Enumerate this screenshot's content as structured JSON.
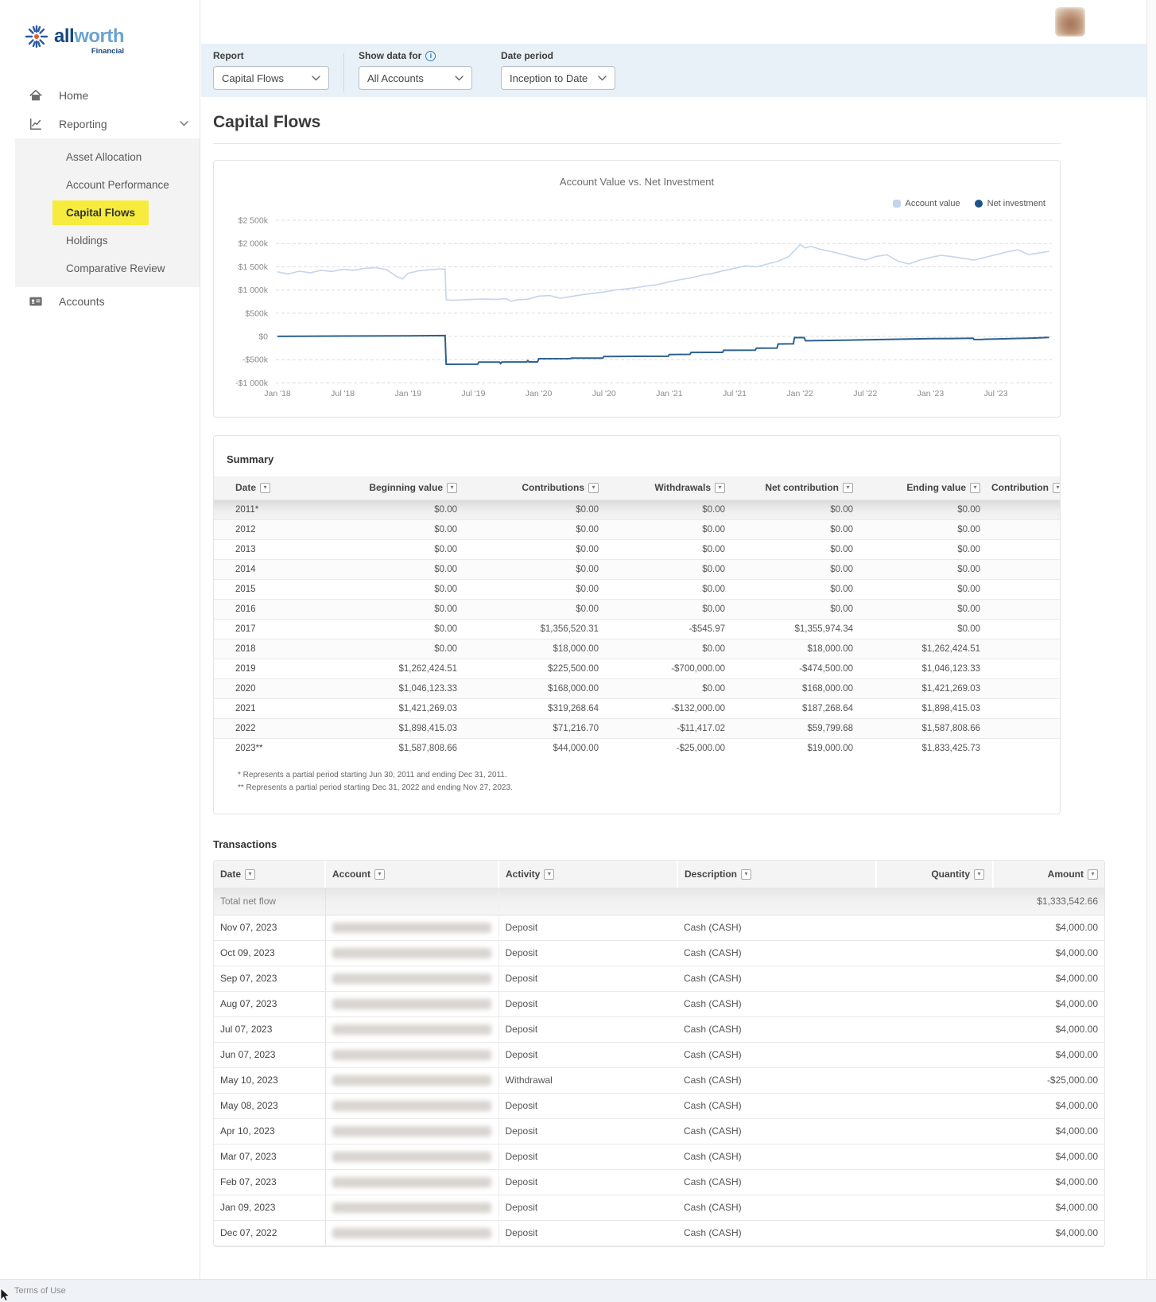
{
  "sidebar": {
    "logo": {
      "brand_bold": "all",
      "brand_light": "worth",
      "brand_sub": "Financial"
    },
    "home_label": "Home",
    "reporting_label": "Reporting",
    "reporting_sub": [
      "Asset Allocation",
      "Account Performance",
      "Capital Flows",
      "Holdings",
      "Comparative Review"
    ],
    "active_sub": "Capital Flows",
    "accounts_label": "Accounts"
  },
  "filters": {
    "report_label": "Report",
    "report_value": "Capital Flows",
    "show_label": "Show data for",
    "show_value": "All Accounts",
    "period_label": "Date period",
    "period_value": "Inception to Date"
  },
  "page": {
    "title": "Capital Flows"
  },
  "chart_data": {
    "type": "line",
    "title": "Account Value vs. Net Investment",
    "legend_position": "top-right",
    "grid": "horizontal-dashed",
    "x_unit": "months since Jan 2018",
    "x_tick_months": [
      0,
      6,
      12,
      18,
      24,
      30,
      36,
      42,
      48,
      54,
      60,
      66
    ],
    "x_tick_labels": [
      "Jan '18",
      "Jul '18",
      "Jan '19",
      "Jul '19",
      "Jan '20",
      "Jul '20",
      "Jan '21",
      "Jul '21",
      "Jan '22",
      "Jul '22",
      "Jan '23",
      "Jul '23"
    ],
    "x_range": [
      0,
      71
    ],
    "y_unit": "USD thousands",
    "y_ticks": [
      2500,
      2000,
      1500,
      1000,
      500,
      0,
      -500,
      -1000
    ],
    "y_tick_labels": [
      "$2 500k",
      "$2 000k",
      "$1 500k",
      "$1 000k",
      "$500k",
      "$0",
      "-$500k",
      "-$1 000k"
    ],
    "series": [
      {
        "name": "Account value",
        "color": "#c3d5ec",
        "width": 1.6,
        "points": [
          [
            0,
            1390
          ],
          [
            1,
            1345
          ],
          [
            2,
            1405
          ],
          [
            3,
            1370
          ],
          [
            4,
            1425
          ],
          [
            5,
            1398
          ],
          [
            6,
            1445
          ],
          [
            7,
            1425
          ],
          [
            8,
            1465
          ],
          [
            9,
            1482
          ],
          [
            10,
            1440
          ],
          [
            11,
            1285
          ],
          [
            11.5,
            1238
          ],
          [
            12,
            1360
          ],
          [
            13,
            1415
          ],
          [
            14,
            1438
          ],
          [
            15,
            1452
          ],
          [
            15.4,
            1448
          ],
          [
            15.5,
            790
          ],
          [
            16,
            778
          ],
          [
            17,
            788
          ],
          [
            18,
            798
          ],
          [
            19,
            806
          ],
          [
            20,
            798
          ],
          [
            21,
            812
          ],
          [
            21.5,
            756
          ],
          [
            22,
            788
          ],
          [
            23,
            802
          ],
          [
            24,
            868
          ],
          [
            25,
            880
          ],
          [
            26,
            822
          ],
          [
            27,
            862
          ],
          [
            28,
            898
          ],
          [
            29,
            928
          ],
          [
            30,
            958
          ],
          [
            31,
            998
          ],
          [
            32,
            1022
          ],
          [
            33,
            1052
          ],
          [
            34,
            1088
          ],
          [
            35,
            1118
          ],
          [
            36,
            1178
          ],
          [
            37,
            1222
          ],
          [
            38,
            1262
          ],
          [
            39,
            1318
          ],
          [
            40,
            1358
          ],
          [
            41,
            1418
          ],
          [
            42,
            1468
          ],
          [
            43,
            1518
          ],
          [
            44,
            1498
          ],
          [
            45,
            1558
          ],
          [
            46,
            1618
          ],
          [
            47,
            1724
          ],
          [
            48,
            1975
          ],
          [
            48.5,
            1905
          ],
          [
            49,
            1940
          ],
          [
            50,
            1868
          ],
          [
            51,
            1820
          ],
          [
            52,
            1762
          ],
          [
            53,
            1700
          ],
          [
            54,
            1645
          ],
          [
            55,
            1722
          ],
          [
            56,
            1758
          ],
          [
            57,
            1622
          ],
          [
            58,
            1560
          ],
          [
            59,
            1642
          ],
          [
            60,
            1700
          ],
          [
            61,
            1748
          ],
          [
            62,
            1718
          ],
          [
            63,
            1682
          ],
          [
            64,
            1642
          ],
          [
            65,
            1702
          ],
          [
            66,
            1758
          ],
          [
            67,
            1818
          ],
          [
            68,
            1868
          ],
          [
            69,
            1762
          ],
          [
            70,
            1800
          ],
          [
            70.9,
            1833
          ]
        ]
      },
      {
        "name": "Net investment",
        "color": "#2d6191",
        "width": 2,
        "points": [
          [
            0,
            2
          ],
          [
            6,
            8
          ],
          [
            12,
            14
          ],
          [
            15.4,
            18
          ],
          [
            15.5,
            -600
          ],
          [
            18.4,
            -598
          ],
          [
            18.5,
            -552
          ],
          [
            20.4,
            -552
          ],
          [
            20.5,
            -584
          ],
          [
            20.6,
            -552
          ],
          [
            22.9,
            -550
          ],
          [
            23,
            -520
          ],
          [
            23.1,
            -548
          ],
          [
            23.9,
            -548
          ],
          [
            24,
            -480
          ],
          [
            26.9,
            -478
          ],
          [
            27,
            -468
          ],
          [
            29.9,
            -466
          ],
          [
            30,
            -432
          ],
          [
            33,
            -428
          ],
          [
            35.9,
            -426
          ],
          [
            36,
            -388
          ],
          [
            37.9,
            -386
          ],
          [
            38,
            -345
          ],
          [
            40.9,
            -342
          ],
          [
            41,
            -298
          ],
          [
            43.9,
            -296
          ],
          [
            44,
            -252
          ],
          [
            45.9,
            -250
          ],
          [
            46,
            -162
          ],
          [
            47.4,
            -160
          ],
          [
            47.5,
            -25
          ],
          [
            48.4,
            -25
          ],
          [
            48.5,
            -92
          ],
          [
            50,
            -88
          ],
          [
            52,
            -80
          ],
          [
            54,
            -72
          ],
          [
            56,
            -64
          ],
          [
            58,
            -56
          ],
          [
            60,
            -48
          ],
          [
            62,
            -44
          ],
          [
            63.9,
            -40
          ],
          [
            64,
            -66
          ],
          [
            64.8,
            -64
          ],
          [
            65,
            -60
          ],
          [
            66,
            -54
          ],
          [
            67,
            -49
          ],
          [
            68,
            -43
          ],
          [
            69,
            -37
          ],
          [
            70,
            -30
          ],
          [
            70.9,
            -22
          ]
        ]
      }
    ]
  },
  "summary": {
    "heading": "Summary",
    "columns": [
      "Date",
      "Beginning value",
      "Contributions",
      "Withdrawals",
      "Net contribution",
      "Ending value",
      "Contribution"
    ],
    "rows": [
      [
        "2011*",
        "$0.00",
        "$0.00",
        "$0.00",
        "$0.00",
        "$0.00",
        ""
      ],
      [
        "2012",
        "$0.00",
        "$0.00",
        "$0.00",
        "$0.00",
        "$0.00",
        ""
      ],
      [
        "2013",
        "$0.00",
        "$0.00",
        "$0.00",
        "$0.00",
        "$0.00",
        ""
      ],
      [
        "2014",
        "$0.00",
        "$0.00",
        "$0.00",
        "$0.00",
        "$0.00",
        ""
      ],
      [
        "2015",
        "$0.00",
        "$0.00",
        "$0.00",
        "$0.00",
        "$0.00",
        ""
      ],
      [
        "2016",
        "$0.00",
        "$0.00",
        "$0.00",
        "$0.00",
        "$0.00",
        ""
      ],
      [
        "2017",
        "$0.00",
        "$1,356,520.31",
        "-$545.97",
        "$1,355,974.34",
        "$0.00",
        ""
      ],
      [
        "2018",
        "$0.00",
        "$18,000.00",
        "$0.00",
        "$18,000.00",
        "$1,262,424.51",
        ""
      ],
      [
        "2019",
        "$1,262,424.51",
        "$225,500.00",
        "-$700,000.00",
        "-$474,500.00",
        "$1,046,123.33",
        ""
      ],
      [
        "2020",
        "$1,046,123.33",
        "$168,000.00",
        "$0.00",
        "$168,000.00",
        "$1,421,269.03",
        ""
      ],
      [
        "2021",
        "$1,421,269.03",
        "$319,268.64",
        "-$132,000.00",
        "$187,268.64",
        "$1,898,415.03",
        ""
      ],
      [
        "2022",
        "$1,898,415.03",
        "$71,216.70",
        "-$11,417.02",
        "$59,799.68",
        "$1,587,808.66",
        ""
      ],
      [
        "2023**",
        "$1,587,808.66",
        "$44,000.00",
        "-$25,000.00",
        "$19,000.00",
        "$1,833,425.73",
        ""
      ]
    ],
    "footnotes": [
      "* Represents a partial period starting Jun 30, 2011 and ending Dec 31, 2011.",
      "** Represents a partial period starting Dec 31, 2022 and ending Nov 27, 2023."
    ]
  },
  "transactions": {
    "heading": "Transactions",
    "columns": [
      "Date",
      "Account",
      "Activity",
      "Description",
      "Quantity",
      "Amount"
    ],
    "total_label": "Total net flow",
    "total_amount": "$1,333,542.66",
    "rows": [
      {
        "date": "Nov 07, 2023",
        "account_redacted": true,
        "activity": "Deposit",
        "description": "Cash (CASH)",
        "quantity": "",
        "amount": "$4,000.00"
      },
      {
        "date": "Oct 09, 2023",
        "account_redacted": true,
        "activity": "Deposit",
        "description": "Cash (CASH)",
        "quantity": "",
        "amount": "$4,000.00"
      },
      {
        "date": "Sep 07, 2023",
        "account_redacted": true,
        "activity": "Deposit",
        "description": "Cash (CASH)",
        "quantity": "",
        "amount": "$4,000.00"
      },
      {
        "date": "Aug 07, 2023",
        "account_redacted": true,
        "activity": "Deposit",
        "description": "Cash (CASH)",
        "quantity": "",
        "amount": "$4,000.00"
      },
      {
        "date": "Jul 07, 2023",
        "account_redacted": true,
        "activity": "Deposit",
        "description": "Cash (CASH)",
        "quantity": "",
        "amount": "$4,000.00"
      },
      {
        "date": "Jun 07, 2023",
        "account_redacted": true,
        "activity": "Deposit",
        "description": "Cash (CASH)",
        "quantity": "",
        "amount": "$4,000.00"
      },
      {
        "date": "May 10, 2023",
        "account_redacted": true,
        "activity": "Withdrawal",
        "description": "Cash (CASH)",
        "quantity": "",
        "amount": "-$25,000.00"
      },
      {
        "date": "May 08, 2023",
        "account_redacted": true,
        "activity": "Deposit",
        "description": "Cash (CASH)",
        "quantity": "",
        "amount": "$4,000.00"
      },
      {
        "date": "Apr 10, 2023",
        "account_redacted": true,
        "activity": "Deposit",
        "description": "Cash (CASH)",
        "quantity": "",
        "amount": "$4,000.00"
      },
      {
        "date": "Mar 07, 2023",
        "account_redacted": true,
        "activity": "Deposit",
        "description": "Cash (CASH)",
        "quantity": "",
        "amount": "$4,000.00"
      },
      {
        "date": "Feb 07, 2023",
        "account_redacted": true,
        "activity": "Deposit",
        "description": "Cash (CASH)",
        "quantity": "",
        "amount": "$4,000.00"
      },
      {
        "date": "Jan 09, 2023",
        "account_redacted": true,
        "activity": "Deposit",
        "description": "Cash (CASH)",
        "quantity": "",
        "amount": "$4,000.00"
      },
      {
        "date": "Dec 07, 2022",
        "account_redacted": true,
        "activity": "Deposit",
        "description": "Cash (CASH)",
        "quantity": "",
        "amount": "$4,000.00"
      }
    ]
  },
  "footer": {
    "terms_label": "Terms of Use"
  }
}
